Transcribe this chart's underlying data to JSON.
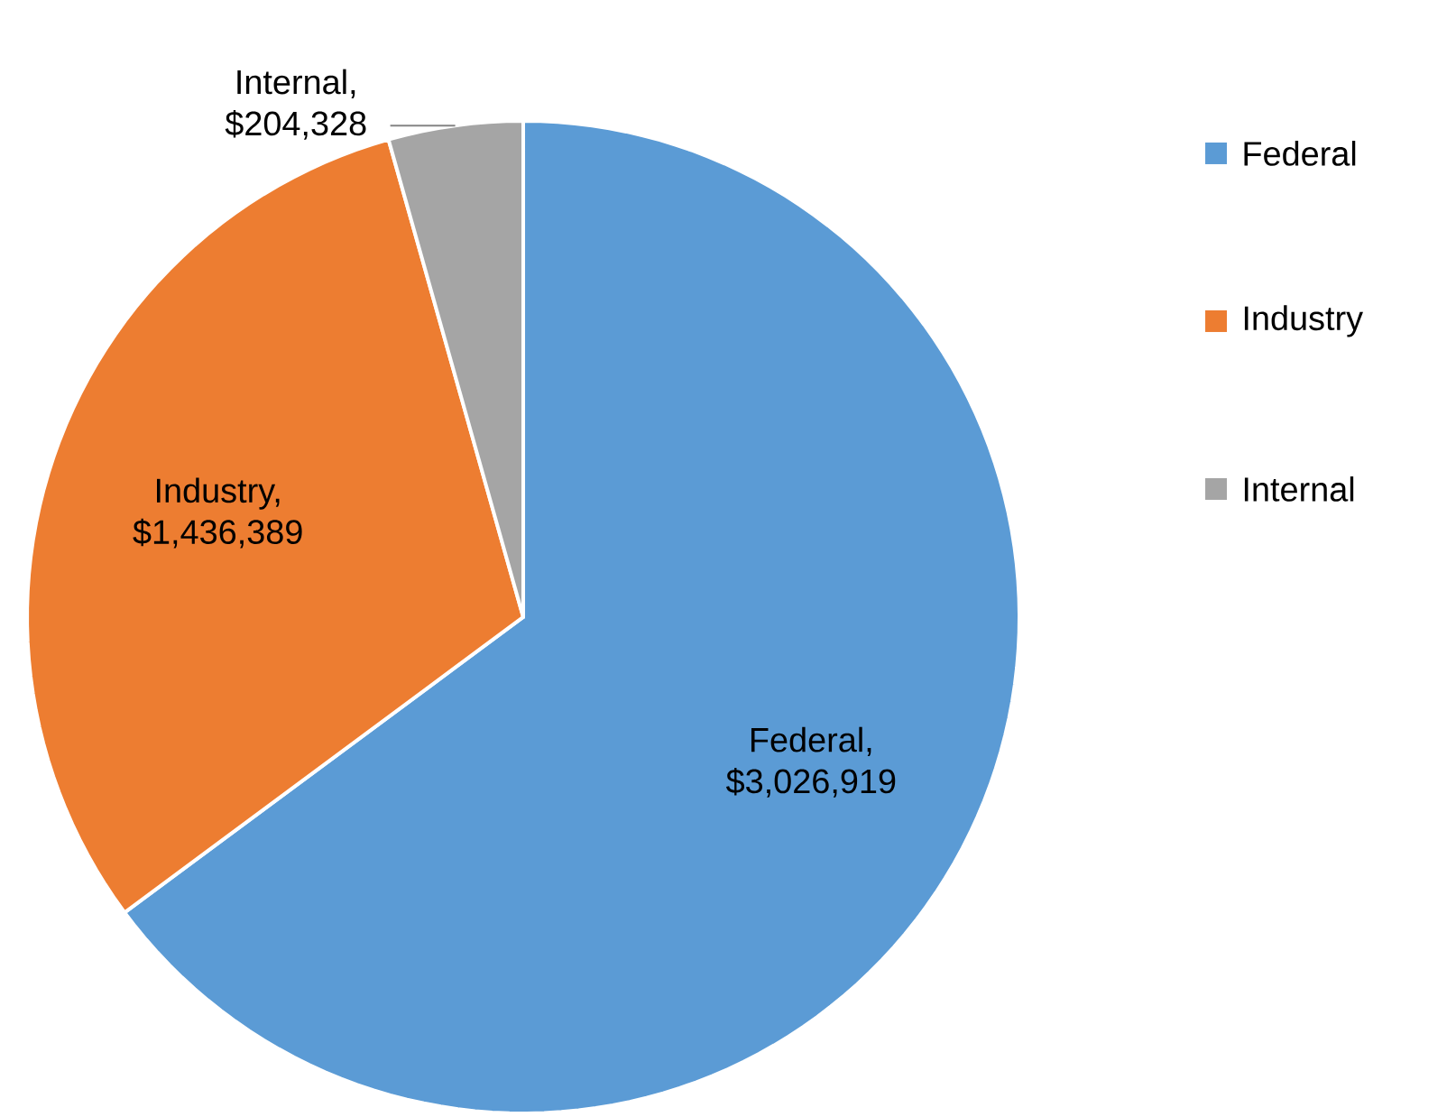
{
  "chart_data": {
    "type": "pie",
    "categories": [
      "Federal",
      "Industry",
      "Internal"
    ],
    "values": [
      3026919,
      1436389,
      204328
    ],
    "value_labels": [
      "Federal, $3,026,919",
      "Industry, $1,436,389",
      "Internal, $204,328"
    ],
    "colors": [
      "#5b9bd5",
      "#ed7d31",
      "#a5a5a5"
    ],
    "legend": "right"
  }
}
